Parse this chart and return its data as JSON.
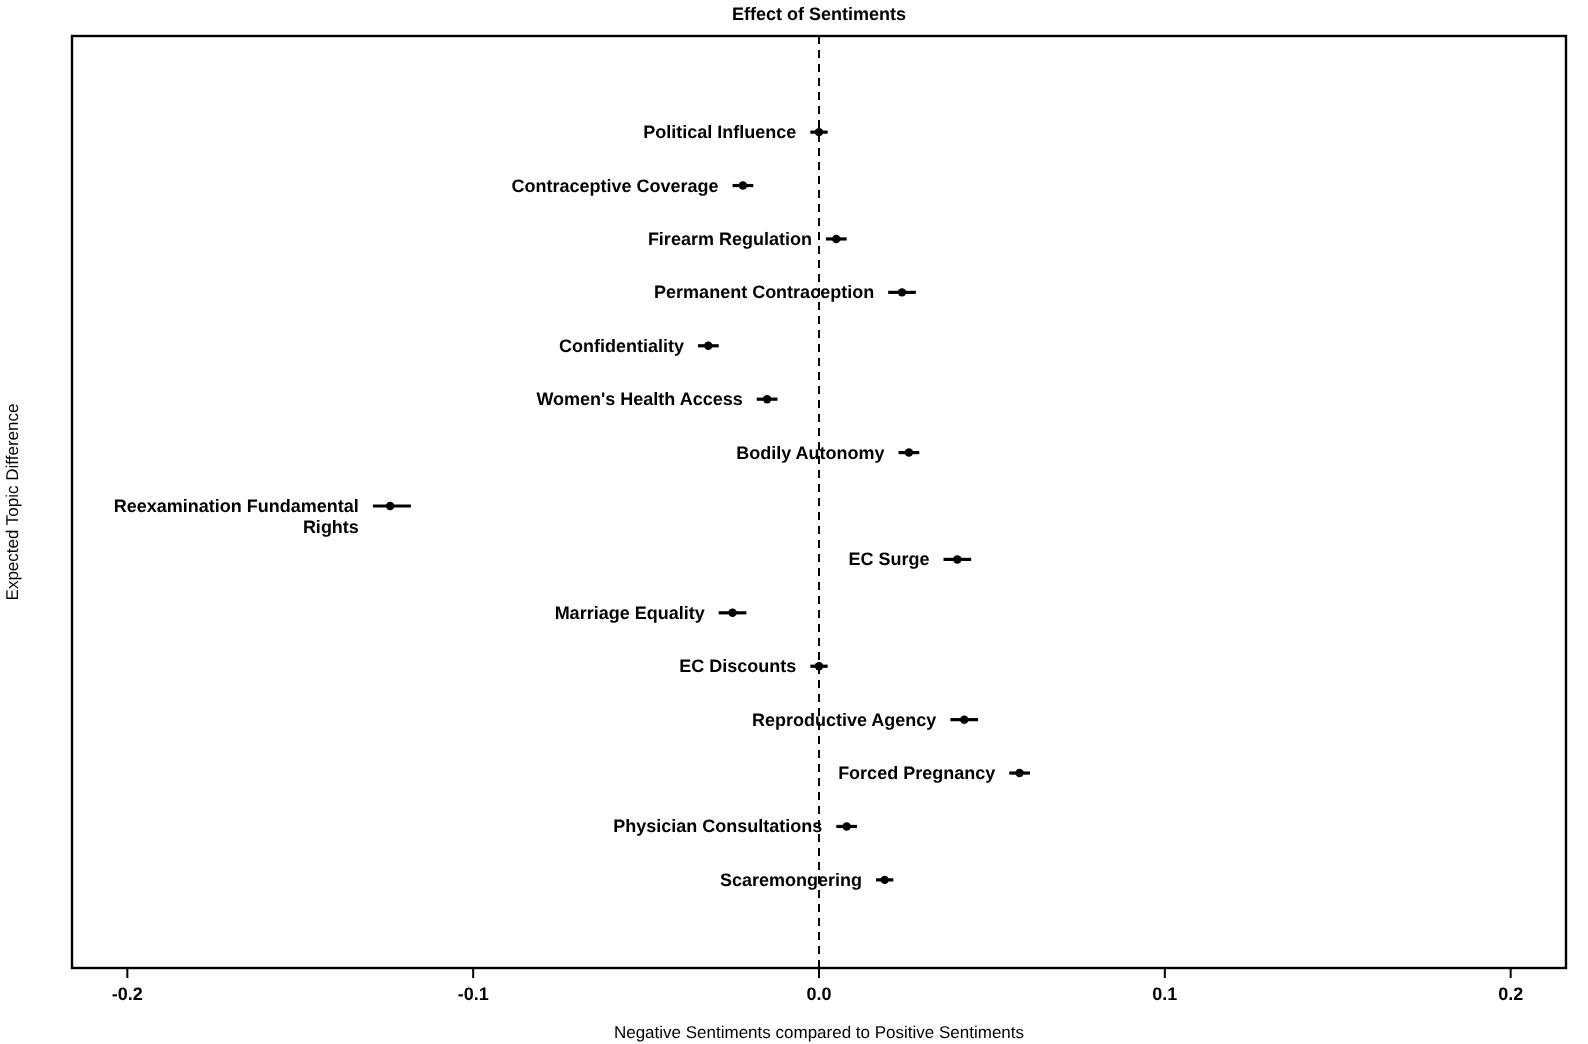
{
  "chart_data": {
    "type": "scatter",
    "orientation": "horizontal",
    "title": "Effect of Sentiments",
    "xlabel": "Negative Sentiments compared to Positive Sentiments",
    "ylabel": "Expected Topic Difference",
    "categories": [
      "Political Influence",
      "Contraceptive Coverage",
      "Firearm Regulation",
      "Permanent Contraception",
      "Confidentiality",
      "Women's Health Access",
      "Bodily Autonomy",
      "Reexamination Fundamental Rights",
      "EC Surge",
      "Marriage Equality",
      "EC Discounts",
      "Reproductive Agency",
      "Forced Pregnancy",
      "Physician Consultations",
      "Scaremongering"
    ],
    "values": [
      0.0,
      -0.022,
      0.005,
      0.024,
      -0.032,
      -0.015,
      0.026,
      -0.124,
      0.04,
      -0.025,
      0.0,
      0.042,
      0.058,
      0.008,
      0.019
    ],
    "errors": [
      0.0025,
      0.003,
      0.003,
      0.004,
      0.003,
      0.003,
      0.003,
      [
        -0.129,
        -0.118
      ],
      0.004,
      0.004,
      0.0025,
      0.004,
      0.003,
      0.003,
      0.0025
    ],
    "color": "#000000",
    "marker": "circle",
    "xlim": [
      -0.216,
      0.216
    ],
    "xticks": [
      {
        "value": -0.2,
        "label": "-0.2"
      },
      {
        "value": -0.1,
        "label": "-0.1"
      },
      {
        "value": 0,
        "label": "0.0"
      },
      {
        "value": 0.1,
        "label": "0.1"
      },
      {
        "value": 0.2,
        "label": "0.2"
      }
    ],
    "ref_lines": [
      {
        "axis": "x",
        "value": 0,
        "line_style": "dashed",
        "color": "#000000"
      }
    ],
    "tick_labels": "x",
    "grid": false
  }
}
